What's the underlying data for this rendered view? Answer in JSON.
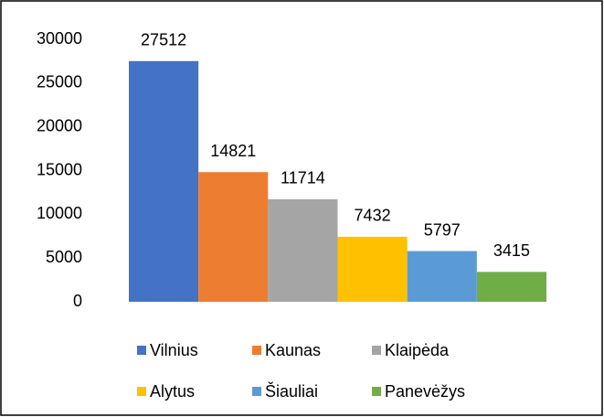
{
  "chart_data": {
    "type": "bar",
    "categories": [
      null
    ],
    "series": [
      {
        "name": "Vilnius",
        "color": "#4472c4",
        "values": [
          27512
        ]
      },
      {
        "name": "Kaunas",
        "color": "#ed7d31",
        "values": [
          14821
        ]
      },
      {
        "name": "Klaipėda",
        "color": "#a5a5a5",
        "values": [
          11714
        ]
      },
      {
        "name": "Alytus",
        "color": "#ffc000",
        "values": [
          7432
        ]
      },
      {
        "name": "Šiauliai",
        "color": "#5b9bd5",
        "values": [
          5797
        ]
      },
      {
        "name": "Panevėžys",
        "color": "#70ad47",
        "values": [
          3415
        ]
      }
    ],
    "ylim": [
      0,
      30000
    ],
    "yticks": [
      0,
      5000,
      10000,
      15000,
      20000,
      25000,
      30000
    ],
    "grid": false,
    "legend": "bottom"
  }
}
